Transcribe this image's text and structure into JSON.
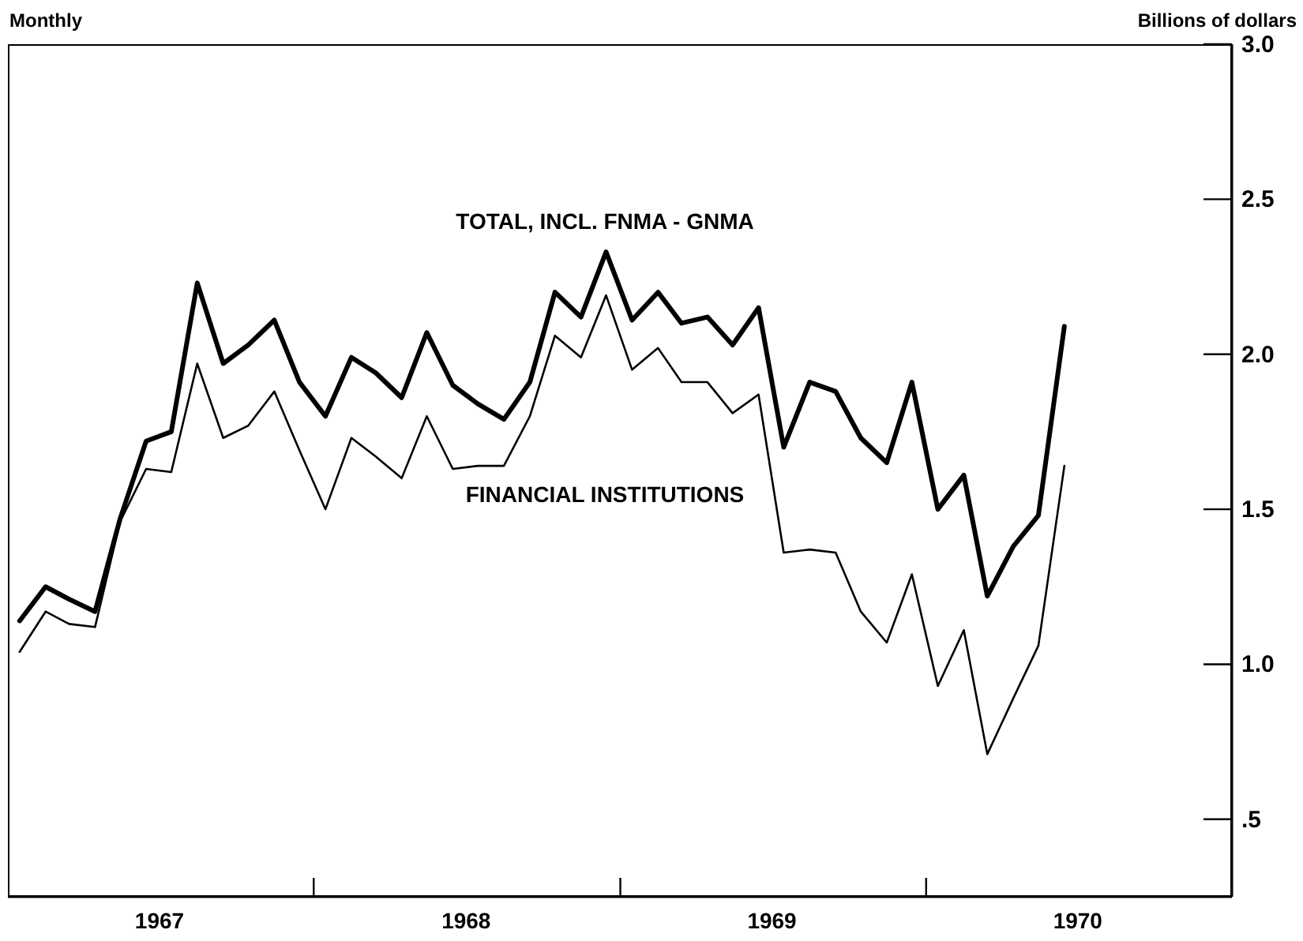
{
  "chart_data": {
    "type": "line",
    "subtitle": "Monthly",
    "ylabel": "Billions of dollars",
    "x": [
      "1967-01-15",
      "1967-02-15",
      "1967-03-15",
      "1967-04-15",
      "1967-05-15",
      "1967-06-15",
      "1967-07-15",
      "1967-08-15",
      "1967-09-15",
      "1967-10-15",
      "1967-11-15",
      "1967-12-15",
      "1968-01-15",
      "1968-02-15",
      "1968-03-15",
      "1968-04-15",
      "1968-05-15",
      "1968-06-15",
      "1968-07-15",
      "1968-08-15",
      "1968-09-15",
      "1968-10-15",
      "1968-11-15",
      "1968-12-15",
      "1969-01-15",
      "1969-02-15",
      "1969-03-15",
      "1969-04-15",
      "1969-05-15",
      "1969-06-15",
      "1969-07-15",
      "1969-08-15",
      "1969-09-15",
      "1969-10-15",
      "1969-11-15",
      "1969-12-15",
      "1970-01-15",
      "1970-02-15",
      "1970-03-15",
      "1970-04-15",
      "1970-05-15",
      "1970-06-15"
    ],
    "xlim": [
      "1967-01-01",
      "1971-01-01"
    ],
    "xticks": [
      {
        "value": "1967-07-01",
        "label": "1967"
      },
      {
        "value": "1968-01-01",
        "label": null
      },
      {
        "value": "1968-07-01",
        "label": "1968"
      },
      {
        "value": "1969-01-01",
        "label": null
      },
      {
        "value": "1969-07-01",
        "label": "1969"
      },
      {
        "value": "1970-01-01",
        "label": null
      },
      {
        "value": "1970-07-01",
        "label": "1970"
      }
    ],
    "ylim": [
      0.25,
      3.0
    ],
    "yticks": [
      {
        "value": 0.5,
        "label": ".5"
      },
      {
        "value": 1,
        "label": "1.0"
      },
      {
        "value": 1.5,
        "label": "1.5"
      },
      {
        "value": 2,
        "label": "2.0"
      },
      {
        "value": 2.5,
        "label": "2.5"
      },
      {
        "value": 3,
        "label": "3.0"
      }
    ],
    "marker": "none",
    "series": [
      {
        "name": "TOTAL, INCL. FNMA - GNMA",
        "color": "#000000",
        "values": [
          1.14,
          1.25,
          1.21,
          1.17,
          1.47,
          1.72,
          1.75,
          2.23,
          1.97,
          2.03,
          2.11,
          1.91,
          1.8,
          1.99,
          1.94,
          1.86,
          2.07,
          1.9,
          1.84,
          1.79,
          1.91,
          2.2,
          2.12,
          2.33,
          2.11,
          2.2,
          2.1,
          2.12,
          2.03,
          2.15,
          1.7,
          1.91,
          1.88,
          1.73,
          1.65,
          1.91,
          1.5,
          1.61,
          1.22,
          1.38,
          1.48,
          2.09
        ]
      },
      {
        "name": "FINANCIAL INSTITUTIONS",
        "color": "#000000",
        "values": [
          1.04,
          1.17,
          1.13,
          1.12,
          1.46,
          1.63,
          1.62,
          1.97,
          1.73,
          1.77,
          1.88,
          1.69,
          1.5,
          1.73,
          1.67,
          1.6,
          1.8,
          1.63,
          1.64,
          1.64,
          1.8,
          2.06,
          1.99,
          2.19,
          1.95,
          2.02,
          1.91,
          1.91,
          1.81,
          1.87,
          1.36,
          1.37,
          1.36,
          1.17,
          1.07,
          1.29,
          0.93,
          1.11,
          0.71,
          0.89,
          1.06,
          1.64
        ]
      }
    ]
  }
}
